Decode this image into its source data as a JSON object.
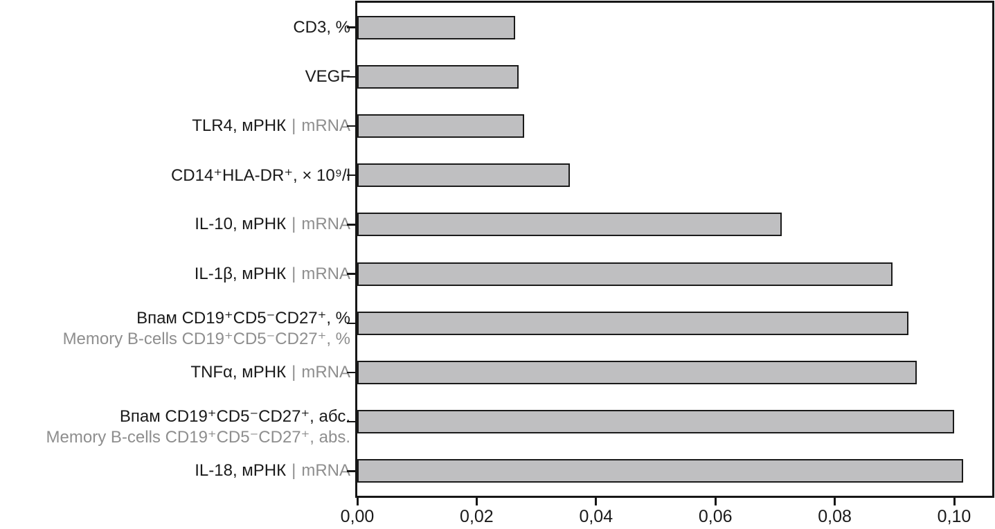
{
  "chart_data": {
    "type": "bar",
    "orientation": "horizontal",
    "title": "",
    "xlabel": "",
    "ylabel": "",
    "grid": false,
    "legend": null,
    "xlim": [
      0,
      0.1064
    ],
    "x_ticks": [
      {
        "value": 0.0,
        "label": "0,00"
      },
      {
        "value": 0.02,
        "label": "0,02"
      },
      {
        "value": 0.04,
        "label": "0,04"
      },
      {
        "value": 0.06,
        "label": "0,06"
      },
      {
        "value": 0.08,
        "label": "0,08"
      },
      {
        "value": 0.1,
        "label": "0,10"
      }
    ],
    "inline_separator": "|",
    "bars": [
      {
        "label_primary": "CD3, %",
        "label_secondary": "",
        "label_layout": "single",
        "value": 0.0264
      },
      {
        "label_primary": "VEGF",
        "label_secondary": "",
        "label_layout": "single",
        "value": 0.027
      },
      {
        "label_primary": "TLR4, мРНК",
        "label_secondary": "mRNA",
        "label_layout": "inline",
        "value": 0.028
      },
      {
        "label_primary": "CD14⁺HLA-DR⁺, × 10⁹/l",
        "label_secondary": "",
        "label_layout": "single",
        "value": 0.0356
      },
      {
        "label_primary": "IL-10, мРНК",
        "label_secondary": "mRNA",
        "label_layout": "inline",
        "value": 0.0711
      },
      {
        "label_primary": "IL-1β, мРНК",
        "label_secondary": "mRNA",
        "label_layout": "inline",
        "value": 0.0897
      },
      {
        "label_primary": "Впам CD19⁺CD5⁻CD27⁺, %",
        "label_secondary": "Memory B-cells CD19⁺CD5⁻CD27⁺, %",
        "label_layout": "two-line",
        "value": 0.0923
      },
      {
        "label_primary": "TNFα, мРНК",
        "label_secondary": "mRNA",
        "label_layout": "inline",
        "value": 0.0937
      },
      {
        "label_primary": "Впам CD19⁺CD5⁻CD27⁺, абс.",
        "label_secondary": "Memory B-cells CD19⁺CD5⁻CD27⁺, abs.",
        "label_layout": "two-line",
        "value": 0.1
      },
      {
        "label_primary": "IL-18, мРНК",
        "label_secondary": "mRNA",
        "label_layout": "inline",
        "value": 0.1015
      }
    ],
    "colors": {
      "bar_fill": "#bfbfc1",
      "bar_border": "#1a1a1a",
      "axis": "#161616",
      "text_primary": "#1a1a1a",
      "text_secondary": "#8e8e8e"
    }
  }
}
